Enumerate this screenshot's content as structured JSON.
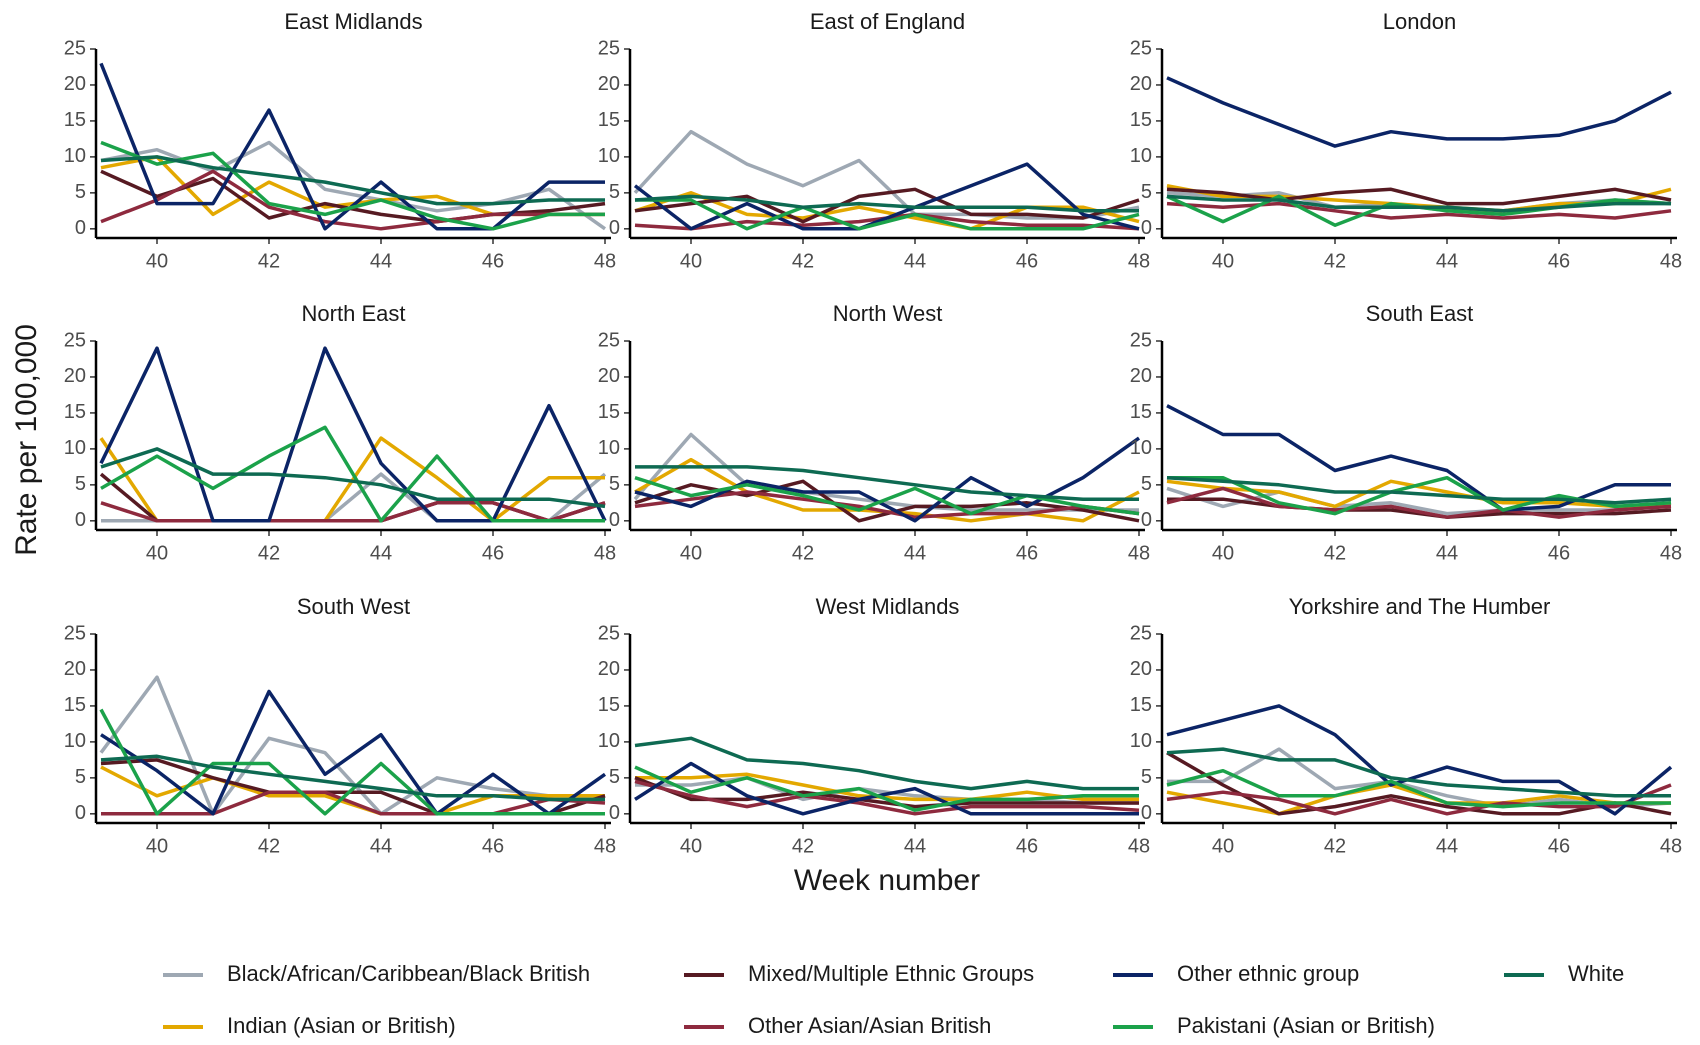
{
  "chart_data": {
    "type": "line",
    "x_label": "Week number",
    "y_label": "Rate per 100,000",
    "x": [
      39,
      40,
      41,
      42,
      43,
      44,
      45,
      46,
      47,
      48
    ],
    "xlim": [
      39,
      48
    ],
    "xticks": [
      40,
      42,
      44,
      46,
      48
    ],
    "ylim": [
      -1,
      25
    ],
    "yticks": [
      0,
      5,
      10,
      15,
      20,
      25
    ],
    "series": [
      {
        "name": "Black/African/Caribbean/Black British",
        "color": "#9ea8b3"
      },
      {
        "name": "Indian (Asian or British)",
        "color": "#e3a800"
      },
      {
        "name": "Mixed/Multiple Ethnic Groups",
        "color": "#561a22"
      },
      {
        "name": "Other Asian/Asian British",
        "color": "#8e2a3e"
      },
      {
        "name": "Other ethnic group",
        "color": "#0b2466"
      },
      {
        "name": "Pakistani (Asian or British)",
        "color": "#1ba24a"
      },
      {
        "name": "White",
        "color": "#0e6a52"
      }
    ],
    "panels": [
      {
        "title": "East Midlands",
        "values": [
          [
            9.5,
            11,
            8,
            12,
            5.5,
            4,
            2.5,
            3.5,
            5.5,
            0
          ],
          [
            8.5,
            10,
            2,
            6.5,
            3,
            4,
            4.5,
            2,
            2,
            2
          ],
          [
            8,
            4.5,
            7,
            1.5,
            3.5,
            2,
            1,
            2,
            2.5,
            3.5
          ],
          [
            1,
            4,
            8,
            3,
            1,
            0,
            1,
            2,
            2,
            2
          ],
          [
            23,
            3.5,
            3.5,
            16.5,
            0,
            6.5,
            0,
            0,
            6.5,
            6.5
          ],
          [
            12,
            9,
            10.5,
            3.5,
            2,
            4,
            1.5,
            0,
            2,
            2
          ],
          [
            9.5,
            10,
            8.5,
            7.5,
            6.5,
            5,
            3.5,
            3.5,
            4,
            4
          ]
        ]
      },
      {
        "title": "East of England",
        "values": [
          [
            5,
            13.5,
            9,
            6,
            9.5,
            2,
            2,
            1.5,
            1.5,
            3
          ],
          [
            2.5,
            5,
            2,
            1.5,
            3,
            1.5,
            0,
            3,
            3,
            1
          ],
          [
            2.5,
            3.5,
            4.5,
            1,
            4.5,
            5.5,
            2,
            2,
            1.5,
            4
          ],
          [
            0.5,
            0,
            1,
            0.5,
            1,
            2,
            1,
            0.5,
            0.5,
            0
          ],
          [
            6,
            0,
            3.5,
            0,
            0,
            3,
            6,
            9,
            2,
            0
          ],
          [
            4,
            4,
            0,
            3,
            0,
            2,
            0,
            0,
            0,
            2
          ],
          [
            4,
            4.5,
            4,
            3,
            3.5,
            3,
            3,
            3,
            2.5,
            2.5
          ]
        ]
      },
      {
        "title": "London",
        "values": [
          [
            5,
            4.5,
            5,
            3,
            3.5,
            2.5,
            2.5,
            3.5,
            4,
            3.5
          ],
          [
            6,
            4.5,
            4.5,
            4,
            3.5,
            3,
            2.5,
            3.5,
            3.5,
            5.5
          ],
          [
            5.5,
            5,
            4,
            5,
            5.5,
            3.5,
            3.5,
            4.5,
            5.5,
            4
          ],
          [
            3.5,
            3,
            3.5,
            2.5,
            1.5,
            2,
            1.5,
            2,
            1.5,
            2.5
          ],
          [
            21,
            17.5,
            14.5,
            11.5,
            13.5,
            12.5,
            12.5,
            13,
            15,
            19
          ],
          [
            4.5,
            1,
            4.5,
            0.5,
            3.5,
            2.5,
            2,
            3,
            4,
            3.5
          ],
          [
            4.5,
            4,
            4,
            3,
            3,
            3,
            2.5,
            3,
            3.5,
            3.5
          ]
        ]
      },
      {
        "title": "North East",
        "values": [
          [
            0,
            0,
            0,
            0,
            0,
            6.5,
            0,
            0,
            0,
            6.5
          ],
          [
            11.5,
            0,
            0,
            0,
            0,
            11.5,
            6,
            0,
            6,
            6
          ],
          [
            6.5,
            0,
            0,
            0,
            0,
            0,
            2.5,
            2.5,
            0,
            2.5
          ],
          [
            2.5,
            0,
            0,
            0,
            0,
            0,
            2.5,
            2.5,
            0,
            2.5
          ],
          [
            8,
            24,
            0,
            0,
            24,
            8,
            0,
            0,
            16,
            0
          ],
          [
            4.5,
            9,
            4.5,
            9,
            13,
            0,
            9,
            0,
            0,
            0
          ],
          [
            7.5,
            10,
            6.5,
            6.5,
            6,
            5,
            3,
            3,
            3,
            2
          ]
        ]
      },
      {
        "title": "North West",
        "values": [
          [
            3,
            12,
            5,
            4,
            3,
            2,
            1.5,
            1.5,
            1.5,
            1.5
          ],
          [
            4,
            8.5,
            4,
            1.5,
            1.5,
            1,
            0,
            1,
            0,
            4
          ],
          [
            2.5,
            5,
            3.5,
            5.5,
            0,
            2,
            2,
            2.5,
            1.5,
            0
          ],
          [
            2,
            3,
            4,
            3,
            2,
            0.5,
            1,
            1,
            2,
            1
          ],
          [
            4,
            2,
            5.5,
            4,
            4,
            0,
            6,
            2,
            6,
            11.5
          ],
          [
            6,
            3.5,
            5,
            3.5,
            1.5,
            4.5,
            1,
            3.5,
            2,
            1
          ],
          [
            7.5,
            7.5,
            7.5,
            7,
            6,
            5,
            4,
            3.5,
            3,
            3
          ]
        ]
      },
      {
        "title": "South East",
        "values": [
          [
            4.5,
            2,
            4,
            2,
            2.5,
            1,
            1.5,
            1.5,
            1.5,
            2.5
          ],
          [
            5.5,
            4.5,
            4,
            2,
            5.5,
            4,
            2.5,
            2.5,
            2,
            2
          ],
          [
            3,
            3,
            2,
            1.5,
            1.5,
            0.5,
            1,
            1,
            1,
            1.5
          ],
          [
            2.5,
            4.5,
            2,
            1.5,
            2,
            0.5,
            1.5,
            0.5,
            1.5,
            2
          ],
          [
            16,
            12,
            12,
            7,
            9,
            7,
            1.5,
            2,
            5,
            5
          ],
          [
            6,
            6,
            2.5,
            1,
            4,
            6,
            1.5,
            3.5,
            2,
            2.5
          ],
          [
            6,
            5.5,
            5,
            4,
            4,
            3.5,
            3,
            3,
            2.5,
            3
          ]
        ]
      },
      {
        "title": "South West",
        "values": [
          [
            8.5,
            19,
            0,
            10.5,
            8.5,
            0,
            5,
            3.5,
            2.5,
            2.5
          ],
          [
            6.5,
            2.5,
            5,
            2.5,
            2.5,
            0,
            0,
            2.5,
            2.5,
            2.5
          ],
          [
            7,
            7.5,
            5,
            3,
            3,
            3,
            0,
            0,
            0,
            2.5
          ],
          [
            0,
            0,
            0,
            3,
            3,
            0,
            0,
            0,
            2,
            1.5
          ],
          [
            11,
            6,
            0,
            17,
            5.5,
            11,
            0,
            5.5,
            0,
            5.5
          ],
          [
            14.5,
            0,
            7,
            7,
            0,
            7,
            0,
            0,
            0,
            0
          ],
          [
            7.5,
            8,
            6.5,
            5.5,
            4.5,
            3.5,
            2.5,
            2.5,
            2,
            2
          ]
        ]
      },
      {
        "title": "West Midlands",
        "values": [
          [
            4,
            4,
            5,
            2,
            3.5,
            2.5,
            2,
            2,
            1.5,
            1.5
          ],
          [
            5,
            5,
            5.5,
            4,
            2.5,
            2,
            2,
            3,
            2,
            2
          ],
          [
            5,
            2,
            2,
            3,
            2,
            1,
            1.5,
            1.5,
            1.5,
            1.5
          ],
          [
            4.5,
            2.5,
            1,
            2.5,
            1.5,
            0,
            1,
            1,
            1,
            0.5
          ],
          [
            2,
            7,
            2.5,
            0,
            2,
            3.5,
            0,
            0,
            0,
            0
          ],
          [
            6.5,
            3,
            5,
            2.5,
            3.5,
            0.5,
            2,
            2,
            2.5,
            2.5
          ],
          [
            9.5,
            10.5,
            7.5,
            7,
            6,
            4.5,
            3.5,
            4.5,
            3.5,
            3.5
          ]
        ]
      },
      {
        "title": "Yorkshire and The Humber",
        "values": [
          [
            4.5,
            4.5,
            9,
            3.5,
            4.5,
            2.5,
            1,
            2,
            1,
            1.5
          ],
          [
            3,
            1.5,
            0,
            2.5,
            4,
            1.5,
            1.5,
            2.5,
            1.5,
            1.5
          ],
          [
            8.5,
            4,
            0,
            1,
            2.5,
            1,
            0,
            0,
            1.5,
            0
          ],
          [
            2,
            3,
            2,
            0,
            2,
            0,
            1.5,
            1,
            1,
            4
          ],
          [
            11,
            13,
            15,
            11,
            4,
            6.5,
            4.5,
            4.5,
            0,
            6.5
          ],
          [
            4,
            6,
            2.5,
            2.5,
            4.5,
            1.5,
            1,
            1.5,
            1.5,
            1.5
          ],
          [
            8.5,
            9,
            7.5,
            7.5,
            5,
            4,
            3.5,
            3,
            2.5,
            2.5
          ]
        ]
      }
    ]
  }
}
